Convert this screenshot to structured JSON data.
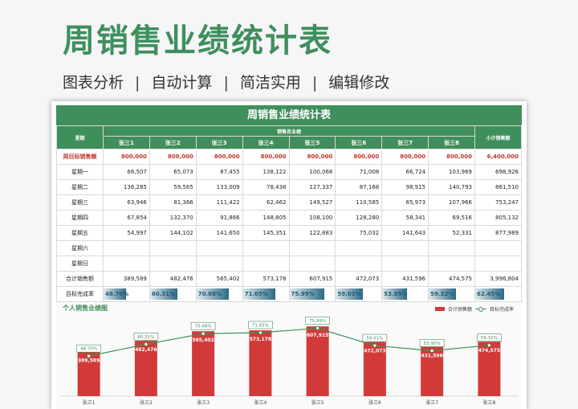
{
  "hero": {
    "title": "周销售业绩统计表",
    "features": [
      "图表分析",
      "自动计算",
      "简洁实用",
      "编辑修改"
    ]
  },
  "sheet": {
    "title": "周销售业绩统计表",
    "col_weekday": "星期",
    "col_group": "销售员业绩",
    "col_subtotal": "小计销售额",
    "salespeople": [
      "张三1",
      "张三2",
      "张三3",
      "张三4",
      "张三5",
      "张三6",
      "张三7",
      "张三8"
    ],
    "target_row": {
      "label": "周目标销售额",
      "values": [
        "800,000",
        "800,000",
        "800,000",
        "800,000",
        "800,000",
        "800,000",
        "800,000",
        "800,000"
      ],
      "subtotal": "6,400,000"
    },
    "rows": [
      {
        "label": "星期一",
        "values": [
          "66,507",
          "65,073",
          "87,455",
          "138,122",
          "100,068",
          "71,008",
          "66,724",
          "103,969"
        ],
        "subtotal": "698,926"
      },
      {
        "label": "星期二",
        "values": [
          "136,285",
          "59,565",
          "133,009",
          "78,438",
          "127,337",
          "87,168",
          "98,915",
          "140,793"
        ],
        "subtotal": "861,510"
      },
      {
        "label": "星期三",
        "values": [
          "63,946",
          "81,366",
          "111,422",
          "62,462",
          "149,527",
          "110,585",
          "65,973",
          "107,966"
        ],
        "subtotal": "753,247"
      },
      {
        "label": "星期四",
        "values": [
          "67,854",
          "132,370",
          "91,866",
          "148,805",
          "108,100",
          "128,280",
          "58,341",
          "69,516"
        ],
        "subtotal": "805,132"
      },
      {
        "label": "星期五",
        "values": [
          "54,997",
          "144,102",
          "141,650",
          "145,351",
          "122,883",
          "75,032",
          "141,643",
          "52,331"
        ],
        "subtotal": "877,989"
      },
      {
        "label": "星期六",
        "values": [
          "",
          "",
          "",
          "",
          "",
          "",
          "",
          ""
        ],
        "subtotal": ""
      },
      {
        "label": "星期日",
        "values": [
          "",
          "",
          "",
          "",
          "",
          "",
          "",
          ""
        ],
        "subtotal": ""
      }
    ],
    "total_row": {
      "label": "合计销售额",
      "values": [
        "389,589",
        "482,476",
        "565,402",
        "573,178",
        "607,915",
        "472,073",
        "431,596",
        "474,575"
      ],
      "subtotal": "3,996,804"
    },
    "rate_row": {
      "label": "目标完成率",
      "values": [
        "48.70%",
        "60.31%",
        "70.68%",
        "71.65%",
        "75.99%",
        "59.01%",
        "53.95%",
        "59.32%"
      ],
      "fractions": [
        0.487,
        0.6031,
        0.7068,
        0.7165,
        0.7599,
        0.5901,
        0.5395,
        0.5932
      ],
      "subtotal": "62.45%",
      "subtotal_fraction": 0.6245
    }
  },
  "chart_data": {
    "type": "bar",
    "title": "个人销售业绩图",
    "categories": [
      "张三1",
      "张三2",
      "张三3",
      "张三4",
      "张三5",
      "张三6",
      "张三7",
      "张三8"
    ],
    "series": [
      {
        "name": "合计销售额",
        "type": "bar",
        "values": [
          389589,
          482476,
          565402,
          573178,
          607915,
          472073,
          431596,
          474575
        ],
        "labels": [
          "389,589",
          "482,476",
          "565,402",
          "573,178",
          "607,915",
          "472,073",
          "431,596",
          "474,575"
        ],
        "color": "#d23a3a"
      },
      {
        "name": "目标完成率",
        "type": "line",
        "values": [
          48.7,
          60.31,
          70.68,
          71.65,
          75.99,
          59.01,
          53.95,
          59.32
        ],
        "labels": [
          "48.70%",
          "60.31%",
          "70.68%",
          "71.65%",
          "75.99%",
          "59.01%",
          "53.95%",
          "59.32%"
        ],
        "color": "#3f8f5c"
      }
    ],
    "legend_position": "top-right"
  }
}
